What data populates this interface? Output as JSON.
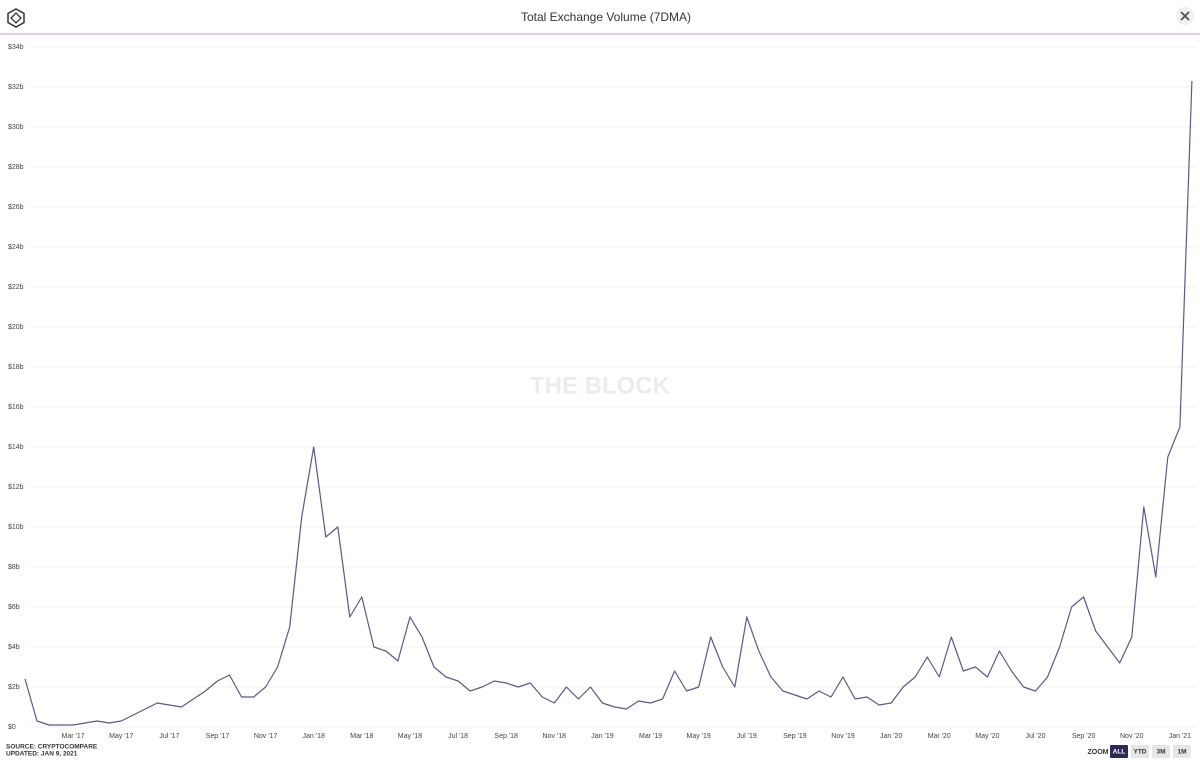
{
  "chart_data": {
    "type": "line",
    "title": "Total Exchange Volume (7DMA)",
    "watermark": "THE BLOCK",
    "source": "SOURCE: CRYPTOCOMPARE",
    "updated": "UPDATED: JAN 9, 2021",
    "zoom_label": "ZOOM",
    "zoom_buttons": [
      "ALL",
      "YTD",
      "3M",
      "1M"
    ],
    "categories": [
      null,
      null,
      null,
      null,
      "Mar '17",
      null,
      null,
      null,
      "May '17",
      null,
      null,
      null,
      "Jul '17",
      null,
      null,
      null,
      "Sep '17",
      null,
      null,
      null,
      "Nov '17",
      null,
      null,
      null,
      "Jan '18",
      null,
      null,
      null,
      "Mar '18",
      null,
      null,
      null,
      "May '18",
      null,
      null,
      null,
      "Jul '18",
      null,
      null,
      null,
      "Sep '18",
      null,
      null,
      null,
      "Nov '18",
      null,
      null,
      null,
      "Jan '19",
      null,
      null,
      null,
      "Mar '19",
      null,
      null,
      null,
      "May '19",
      null,
      null,
      null,
      "Jul '19",
      null,
      null,
      null,
      "Sep '19",
      null,
      null,
      null,
      "Nov '19",
      null,
      null,
      null,
      "Jan '20",
      null,
      null,
      null,
      "Mar '20",
      null,
      null,
      null,
      "May '20",
      null,
      null,
      null,
      "Jul '20",
      null,
      null,
      null,
      "Sep '20",
      null,
      null,
      null,
      "Nov '20",
      null,
      null,
      null,
      "Jan '21",
      null
    ],
    "series": [
      {
        "color": "#5d5887",
        "values": [
          2.4,
          0.3,
          0.1,
          0.1,
          0.1,
          0.2,
          0.3,
          0.2,
          0.3,
          0.6,
          0.9,
          1.2,
          1.1,
          1.0,
          1.4,
          1.8,
          2.3,
          2.6,
          1.5,
          1.5,
          2.0,
          3.0,
          5.0,
          10.5,
          14.0,
          9.5,
          10.0,
          5.5,
          6.5,
          4.0,
          3.8,
          3.3,
          5.5,
          4.5,
          3.0,
          2.5,
          2.3,
          1.8,
          2.0,
          2.3,
          2.2,
          2.0,
          2.2,
          1.5,
          1.2,
          2.0,
          1.4,
          2.0,
          1.2,
          1.0,
          0.9,
          1.3,
          1.2,
          1.4,
          2.8,
          1.8,
          2.0,
          4.5,
          3.0,
          2.0,
          5.5,
          3.8,
          2.5,
          1.8,
          1.6,
          1.4,
          1.8,
          1.5,
          2.5,
          1.4,
          1.5,
          1.1,
          1.2,
          2.0,
          2.5,
          3.5,
          2.5,
          4.5,
          2.8,
          3.0,
          2.5,
          3.8,
          2.8,
          2.0,
          1.8,
          2.5,
          4.0,
          6.0,
          6.5,
          4.8,
          4.0,
          3.2,
          4.5,
          11.0,
          7.5,
          13.5,
          15.0,
          32.3
        ]
      }
    ],
    "ylim": [
      0,
      34
    ],
    "yticks": [
      {
        "value": 0,
        "label": "$0"
      },
      {
        "value": 2,
        "label": "$2b"
      },
      {
        "value": 4,
        "label": "$4b"
      },
      {
        "value": 6,
        "label": "$6b"
      },
      {
        "value": 8,
        "label": "$8b"
      },
      {
        "value": 10,
        "label": "$10b"
      },
      {
        "value": 12,
        "label": "$12b"
      },
      {
        "value": 14,
        "label": "$14b"
      },
      {
        "value": 16,
        "label": "$16b"
      },
      {
        "value": 18,
        "label": "$18b"
      },
      {
        "value": 20,
        "label": "$20b"
      },
      {
        "value": 22,
        "label": "$22b"
      },
      {
        "value": 24,
        "label": "$24b"
      },
      {
        "value": 26,
        "label": "$26b"
      },
      {
        "value": 28,
        "label": "$28b"
      },
      {
        "value": 30,
        "label": "$30b"
      },
      {
        "value": 32,
        "label": "$32b"
      },
      {
        "value": 34,
        "label": "$34b"
      }
    ],
    "grid": true
  }
}
